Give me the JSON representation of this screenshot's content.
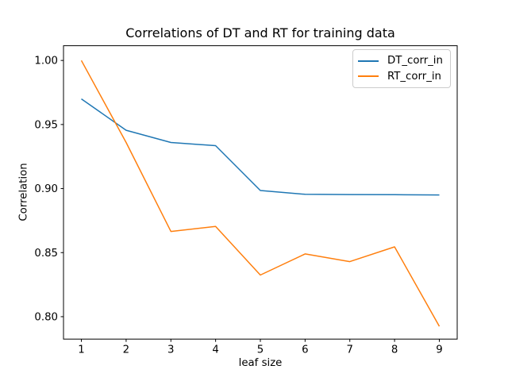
{
  "chart_data": {
    "type": "line",
    "title": "Correlations of DT and RT for training data",
    "xlabel": "leaf size",
    "ylabel": "Correlation",
    "x": [
      1,
      2,
      3,
      4,
      5,
      6,
      7,
      8,
      9
    ],
    "series": [
      {
        "name": "DT_corr_in",
        "color": "#1f77b4",
        "values": [
          0.97,
          0.9455,
          0.936,
          0.9335,
          0.8985,
          0.8955,
          0.8953,
          0.8952,
          0.895
        ]
      },
      {
        "name": "RT_corr_in",
        "color": "#ff7f0e",
        "values": [
          1.0,
          0.936,
          0.8665,
          0.8705,
          0.8325,
          0.849,
          0.843,
          0.8545,
          0.7925
        ]
      }
    ],
    "xlim": [
      0.6,
      9.4
    ],
    "ylim": [
      0.7825,
      1.0115
    ],
    "xticks": [
      1,
      2,
      3,
      4,
      5,
      6,
      7,
      8,
      9
    ],
    "xtick_labels": [
      "1",
      "2",
      "3",
      "4",
      "5",
      "6",
      "7",
      "8",
      "9"
    ],
    "yticks": [
      0.8,
      0.85,
      0.9,
      0.95,
      1.0
    ],
    "ytick_labels": [
      "0.80",
      "0.85",
      "0.90",
      "0.95",
      "1.00"
    ],
    "grid": false,
    "legend_position": "upper right",
    "spine_color": "#000000"
  }
}
